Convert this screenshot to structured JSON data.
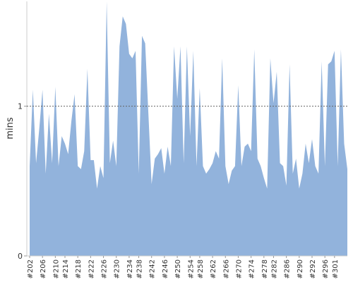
{
  "chart_data": {
    "type": "area",
    "y_label": "mins",
    "color": "#92b3dc",
    "categories": [
      "#202",
      null,
      null,
      null,
      "#206",
      null,
      null,
      null,
      "#210",
      null,
      null,
      "#214",
      null,
      null,
      null,
      "#218",
      null,
      null,
      null,
      "#222",
      null,
      null,
      null,
      "#226",
      null,
      null,
      null,
      "#230",
      null,
      null,
      null,
      "#234",
      null,
      null,
      "#238",
      null,
      null,
      null,
      "#242",
      null,
      null,
      null,
      "#246",
      null,
      null,
      null,
      "#250",
      null,
      null,
      null,
      "#254",
      null,
      null,
      "#258",
      null,
      null,
      null,
      "#262",
      null,
      null,
      null,
      "#266",
      null,
      null,
      null,
      "#270",
      null,
      null,
      null,
      "#274",
      null,
      null,
      null,
      "#278",
      null,
      null,
      "#282",
      null,
      null,
      null,
      "#286",
      null,
      null,
      null,
      "#290",
      null,
      null,
      null,
      "#292",
      null,
      null,
      null,
      "#296",
      null,
      null,
      "#301",
      null,
      null,
      null,
      null
    ],
    "values": [
      0.6,
      1.11,
      0.62,
      0.85,
      1.11,
      0.55,
      0.95,
      0.62,
      1.13,
      0.6,
      0.8,
      0.75,
      0.68,
      0.9,
      1.08,
      0.6,
      0.58,
      0.7,
      1.25,
      0.64,
      0.64,
      0.45,
      0.6,
      0.52,
      1.7,
      0.62,
      0.77,
      0.6,
      1.4,
      1.6,
      1.55,
      1.35,
      1.32,
      1.37,
      0.55,
      1.47,
      1.42,
      0.95,
      0.48,
      0.65,
      0.68,
      0.72,
      0.55,
      0.73,
      0.6,
      1.4,
      1.05,
      1.4,
      0.62,
      1.4,
      0.8,
      1.37,
      0.6,
      1.12,
      0.6,
      0.55,
      0.58,
      0.62,
      0.7,
      0.65,
      1.32,
      0.6,
      0.48,
      0.57,
      0.6,
      1.14,
      0.6,
      0.73,
      0.75,
      0.7,
      1.38,
      0.65,
      0.6,
      0.52,
      0.45,
      1.32,
      1.02,
      1.23,
      0.62,
      0.6,
      0.47,
      1.28,
      0.55,
      0.65,
      0.45,
      0.55,
      0.75,
      0.62,
      0.78,
      0.6,
      0.55,
      1.3,
      0.6,
      1.28,
      1.3,
      1.37,
      0.6,
      1.38,
      0.75,
      0.58
    ],
    "ylim": [
      0,
      1.7
    ],
    "yticks": [
      0,
      1
    ],
    "grid": true
  }
}
